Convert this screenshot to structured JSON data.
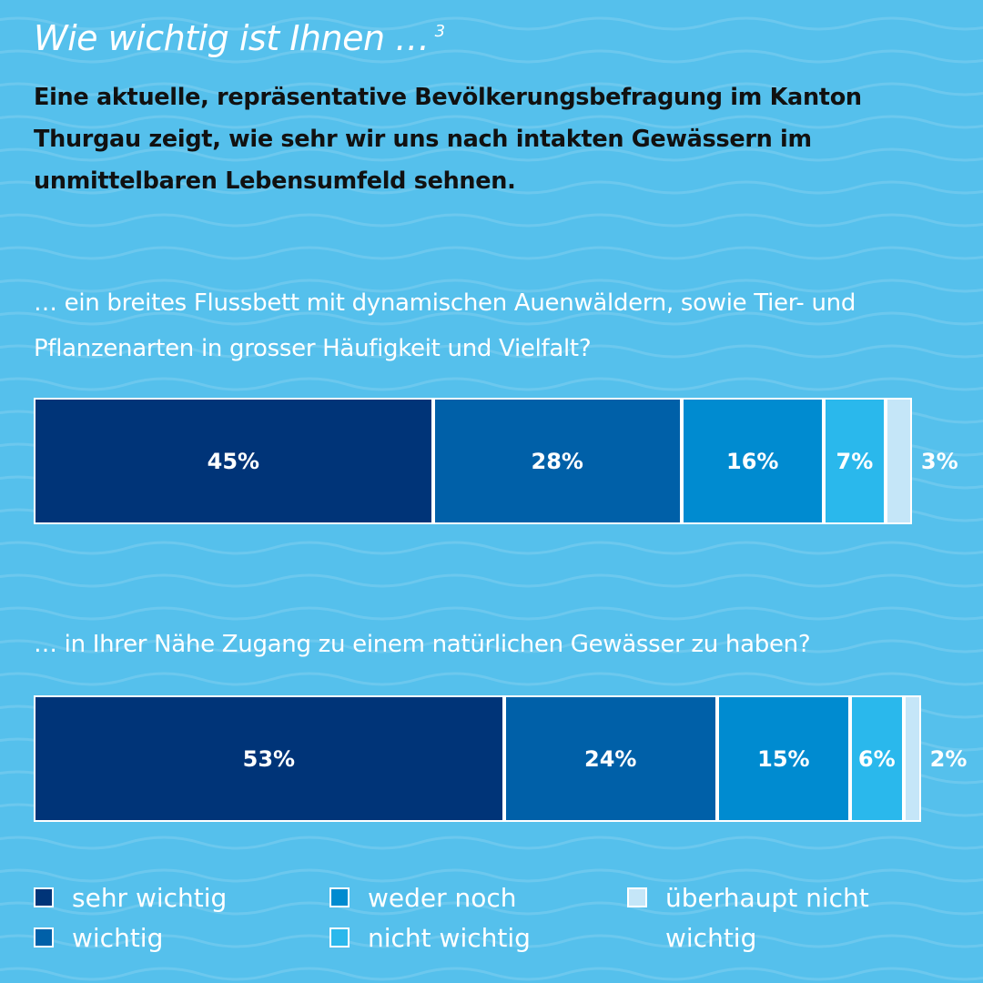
{
  "header": {
    "title": "Wie wichtig ist Ihnen …",
    "footnote": "3",
    "subtitle": "Eine aktuelle, repräsentative Bevölkerungsbefragung im Kanton Thurgau zeigt, wie sehr wir uns nach intakten Gewässern im unmittelbaren Lebensumfeld sehnen."
  },
  "colors": {
    "background": "#55c0ec",
    "sehr_wichtig": "#003478",
    "wichtig": "#0060a8",
    "weder_noch": "#008bd0",
    "nicht_wichtig": "#2ab8ec",
    "ueberhaupt_nicht_wichtig": "#c5e6f8"
  },
  "chart_data": {
    "type": "bar",
    "orientation": "horizontal-stacked",
    "categories": [
      "… ein breites Flussbett mit dynamischen Auenwäldern, sowie Tier- und Pflanzenarten in grosser Häufigkeit und Vielfalt?",
      "… in Ihrer Nähe Zugang zu einem natürlichen Gewässer zu haben?"
    ],
    "series": [
      {
        "name": "sehr wichtig",
        "values": [
          45,
          53
        ],
        "labels": [
          "45%",
          "53%"
        ]
      },
      {
        "name": "wichtig",
        "values": [
          28,
          24
        ],
        "labels": [
          "28%",
          "24%"
        ]
      },
      {
        "name": "weder noch",
        "values": [
          16,
          15
        ],
        "labels": [
          "16%",
          "15%"
        ]
      },
      {
        "name": "nicht wichtig",
        "values": [
          7,
          6
        ],
        "labels": [
          "7%",
          "6%"
        ]
      },
      {
        "name": "überhaupt nicht wichtig",
        "values": [
          3,
          2
        ],
        "labels": [
          "3%",
          "2%"
        ]
      }
    ],
    "unit": "%",
    "legend_position": "bottom"
  }
}
